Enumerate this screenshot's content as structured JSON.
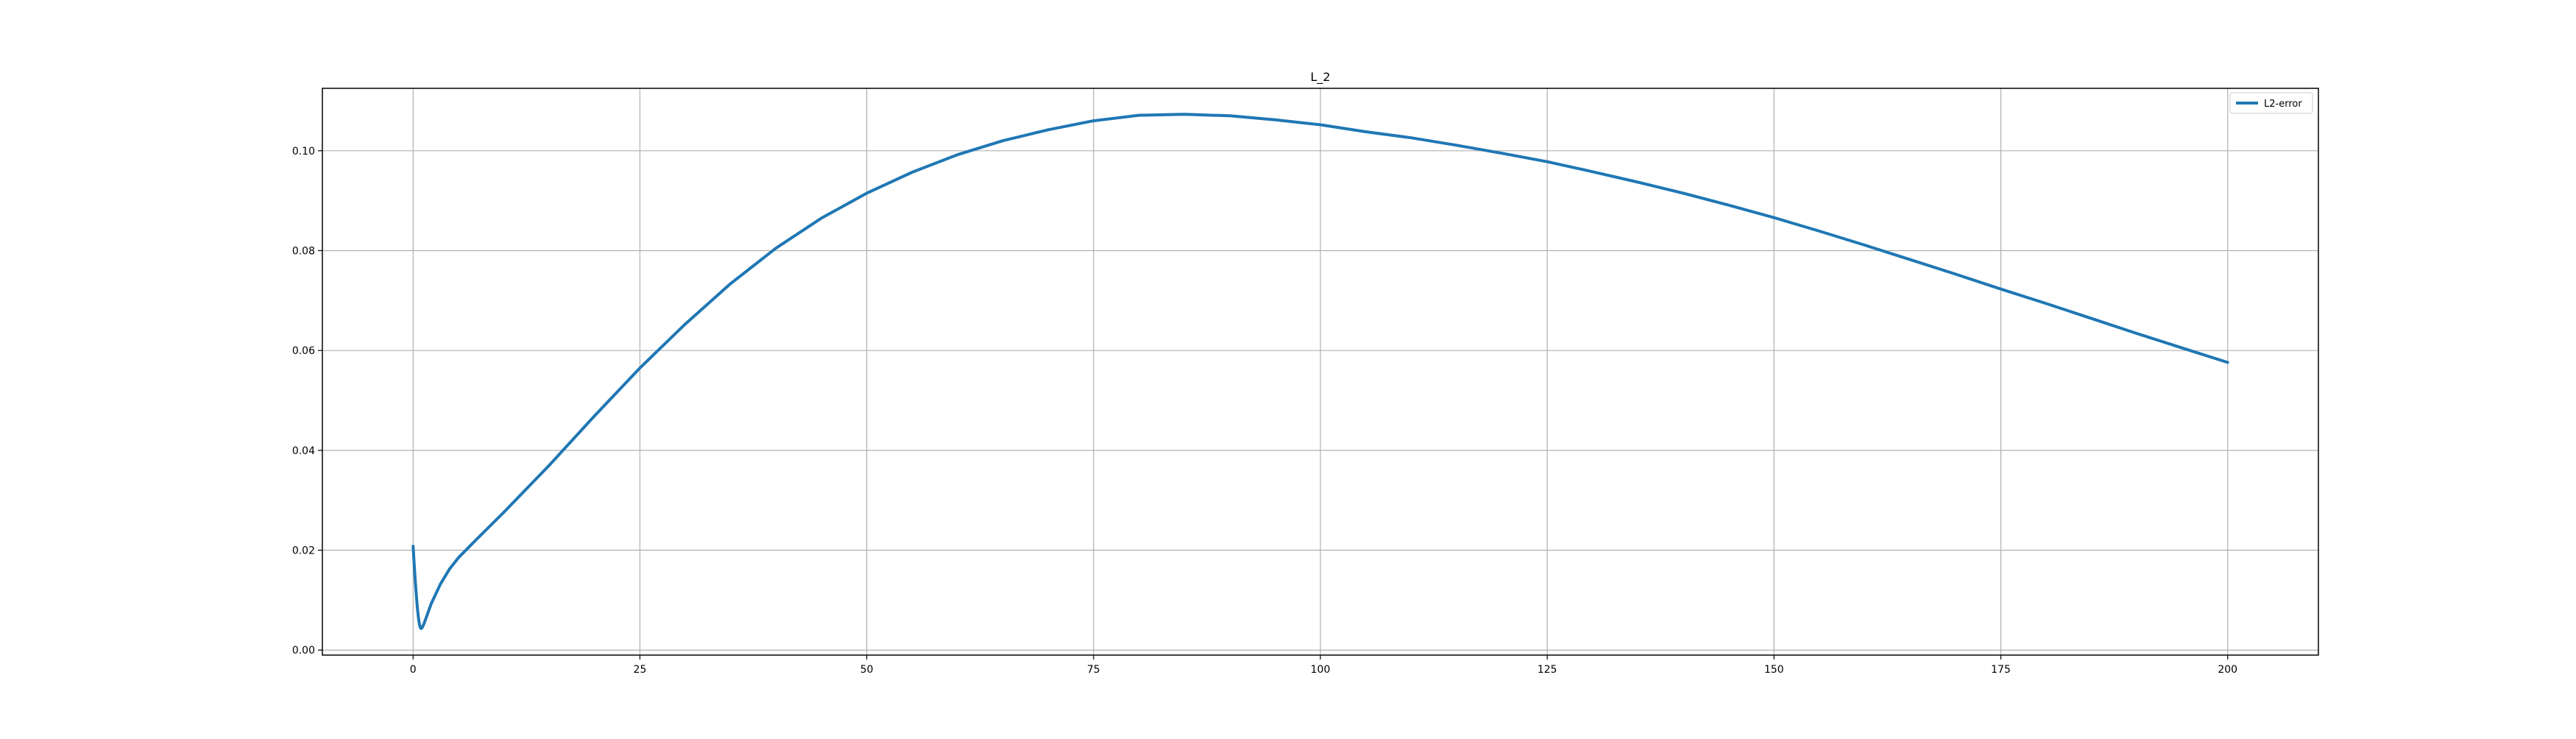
{
  "chart_data": {
    "type": "line",
    "title": "L_2",
    "xlabel": "",
    "ylabel": "",
    "xlim": [
      -10,
      210
    ],
    "ylim": [
      -0.001,
      0.1125
    ],
    "xticks": [
      0,
      25,
      50,
      75,
      100,
      125,
      150,
      175,
      200
    ],
    "xtick_labels": [
      "0",
      "25",
      "50",
      "75",
      "100",
      "125",
      "150",
      "175",
      "200"
    ],
    "yticks": [
      0.0,
      0.02,
      0.04,
      0.06,
      0.08,
      0.1
    ],
    "ytick_labels": [
      "0.00",
      "0.02",
      "0.04",
      "0.06",
      "0.08",
      "0.10"
    ],
    "grid": true,
    "legend": {
      "position": "top-right",
      "entries": [
        "L2-error"
      ]
    },
    "colors": {
      "series": "#1f77b4",
      "grid": "#b0b0b0",
      "axes": "#000000"
    },
    "series": [
      {
        "name": "L2-error",
        "x": [
          0,
          0.1,
          0.2,
          0.3,
          0.4,
          0.5,
          0.6,
          0.7,
          0.8,
          0.9,
          1.0,
          1.2,
          1.5,
          2,
          3,
          4,
          5,
          7,
          10,
          15,
          20,
          25,
          30,
          35,
          40,
          45,
          50,
          55,
          60,
          65,
          70,
          75,
          80,
          85,
          90,
          95,
          100,
          105,
          110,
          115,
          120,
          125,
          130,
          135,
          140,
          145,
          150,
          155,
          160,
          165,
          170,
          175,
          180,
          185,
          190,
          195,
          200
        ],
        "y": [
          0.0208,
          0.0178,
          0.015,
          0.0123,
          0.01,
          0.008,
          0.0063,
          0.0051,
          0.0045,
          0.0043,
          0.0045,
          0.0053,
          0.0068,
          0.0093,
          0.0132,
          0.0162,
          0.0185,
          0.0222,
          0.0276,
          0.037,
          0.0469,
          0.0565,
          0.0653,
          0.0734,
          0.0805,
          0.0865,
          0.0915,
          0.0957,
          0.0992,
          0.102,
          0.1042,
          0.106,
          0.1071,
          0.1073,
          0.107,
          0.1062,
          0.1052,
          0.1038,
          0.1026,
          0.1011,
          0.0995,
          0.0978,
          0.0958,
          0.0937,
          0.0915,
          0.0891,
          0.0866,
          0.0839,
          0.0811,
          0.0782,
          0.0753,
          0.0723,
          0.0694,
          0.0664,
          0.0634,
          0.0605,
          0.0576
        ]
      }
    ]
  }
}
